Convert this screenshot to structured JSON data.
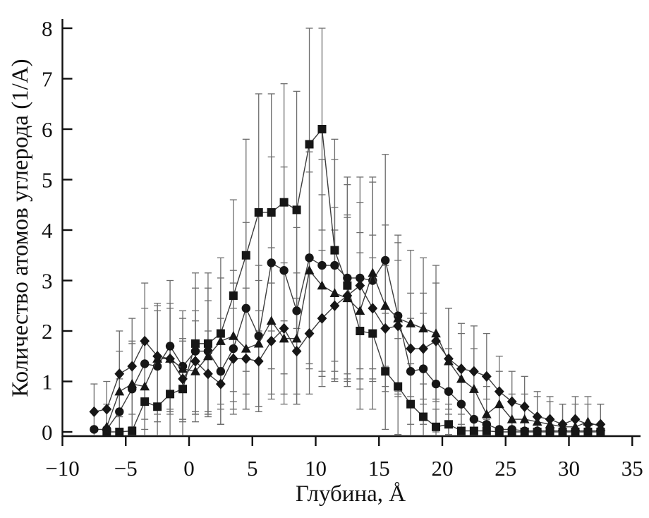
{
  "figure": {
    "title": "",
    "xlabel": "Глубина, Å",
    "ylabel": "Количество атомов углерода (1/А)"
  },
  "chart_data": {
    "type": "line",
    "title": "",
    "xlabel": "Глубина, Å",
    "ylabel": "Количество атомов углерода (1/А)",
    "xlim": [
      -10,
      35
    ],
    "ylim": [
      0,
      8
    ],
    "grid": false,
    "legend": "none",
    "error_bars": true,
    "x_ticks": {
      "values": [
        -10,
        -5,
        0,
        5,
        10,
        15,
        20,
        25,
        30,
        35
      ],
      "labels": [
        "−10",
        "−5",
        "0",
        "5",
        "10",
        "15",
        "20",
        "25",
        "30",
        "35"
      ]
    },
    "y_ticks": {
      "values": [
        0,
        1,
        2,
        3,
        4,
        5,
        6,
        7,
        8
      ],
      "labels": [
        "0",
        "1",
        "2",
        "3",
        "4",
        "5",
        "6",
        "7",
        "8"
      ]
    },
    "x": [
      -7.5,
      -6.5,
      -5.5,
      -4.5,
      -3.5,
      -2.5,
      -1.5,
      -0.5,
      0.5,
      1.5,
      2.5,
      3.5,
      4.5,
      5.5,
      6.5,
      7.5,
      8.5,
      9.5,
      10.5,
      11.5,
      12.5,
      13.5,
      14.5,
      15.5,
      16.5,
      17.5,
      18.5,
      19.5,
      20.5,
      21.5,
      22.5,
      23.5,
      24.5,
      25.5,
      26.5,
      27.5,
      28.5,
      29.5,
      30.5,
      31.5,
      32.5
    ],
    "series": [
      {
        "name": "squares",
        "marker": "square",
        "y": [
          null,
          0,
          0,
          0.02,
          0.6,
          0.5,
          0.75,
          0.85,
          1.75,
          1.75,
          1.95,
          2.7,
          3.5,
          4.35,
          4.35,
          4.55,
          4.4,
          5.7,
          6.0,
          3.6,
          2.9,
          2.0,
          1.95,
          1.2,
          0.9,
          0.55,
          0.3,
          0.1,
          0.15,
          0.02,
          0.02,
          0.02,
          0,
          0,
          0,
          0,
          0,
          0,
          0,
          0,
          0
        ],
        "err": [
          null,
          0,
          0,
          0,
          0.8,
          0.75,
          0.9,
          0.95,
          1.4,
          1.4,
          1.5,
          1.9,
          2.3,
          2.35,
          2.35,
          2.35,
          2.35,
          2.3,
          2.0,
          2.2,
          2.0,
          1.55,
          1.5,
          1.15,
          0.95,
          0.8,
          0.65,
          0.35,
          0.4,
          0,
          0,
          0,
          0,
          0,
          0,
          0,
          0,
          0,
          0,
          0,
          0
        ]
      },
      {
        "name": "circles",
        "marker": "circle",
        "y": [
          0.05,
          0.05,
          0.4,
          0.85,
          1.35,
          1.3,
          1.7,
          1.3,
          1.6,
          1.6,
          1.2,
          1.65,
          2.45,
          1.9,
          3.35,
          3.2,
          2.4,
          3.45,
          3.3,
          3.3,
          3.05,
          3.05,
          3.0,
          3.4,
          2.3,
          1.2,
          1.25,
          0.95,
          0.8,
          0.55,
          0.25,
          0.15,
          0.05,
          0.05,
          0.02,
          0.02,
          0.02,
          0.02,
          0.02,
          0.02,
          0.02
        ],
        "err": [
          0,
          0,
          0.65,
          0.9,
          1.1,
          1.1,
          1.3,
          1.1,
          1.25,
          1.25,
          1.05,
          1.3,
          1.7,
          1.4,
          2.1,
          2.05,
          1.65,
          2.1,
          2.1,
          2.1,
          2.0,
          2.0,
          1.95,
          2.1,
          1.6,
          1.05,
          1.1,
          0.95,
          0.85,
          0.7,
          0.6,
          0.5,
          0,
          0,
          0,
          0,
          0,
          0,
          0,
          0,
          0
        ]
      },
      {
        "name": "triangles",
        "marker": "triangle",
        "y": [
          null,
          0.1,
          0.8,
          0.95,
          0.9,
          1.45,
          1.45,
          1.25,
          1.2,
          1.5,
          1.8,
          1.9,
          1.65,
          1.75,
          2.2,
          1.85,
          1.85,
          3.2,
          2.9,
          2.75,
          2.65,
          2.4,
          3.15,
          2.5,
          2.25,
          2.15,
          2.05,
          1.95,
          1.4,
          1.05,
          0.85,
          0.35,
          0.55,
          0.25,
          0.25,
          0.2,
          0.15,
          0.1,
          0.1,
          0.2,
          0.1
        ],
        "err": [
          null,
          0.45,
          0.8,
          0.85,
          0.85,
          1.1,
          1.1,
          1.0,
          1.0,
          1.1,
          1.25,
          1.3,
          1.2,
          1.25,
          1.45,
          1.3,
          1.3,
          1.95,
          1.8,
          1.7,
          1.65,
          1.55,
          1.9,
          1.6,
          1.5,
          1.45,
          1.4,
          1.35,
          1.05,
          0.9,
          0.8,
          0.55,
          0.65,
          0.5,
          0.5,
          0.5,
          0.45,
          0.45,
          0.45,
          0.5,
          0.45
        ]
      },
      {
        "name": "diamonds",
        "marker": "diamond",
        "y": [
          0.4,
          0.45,
          1.15,
          1.3,
          1.8,
          1.5,
          1.45,
          1.05,
          1.4,
          1.15,
          0.95,
          1.45,
          1.45,
          1.4,
          1.8,
          2.05,
          1.6,
          1.95,
          2.25,
          2.5,
          2.7,
          2.9,
          2.45,
          2.05,
          2.1,
          1.65,
          1.65,
          1.8,
          1.45,
          1.25,
          1.2,
          1.1,
          0.8,
          0.6,
          0.5,
          0.3,
          0.25,
          0.15,
          0.25,
          0.15,
          0.15
        ],
        "err": [
          0.55,
          0.55,
          0.85,
          0.95,
          1.15,
          1.0,
          1.0,
          0.8,
          1.0,
          0.85,
          0.8,
          1.0,
          1.0,
          1.0,
          1.15,
          1.3,
          1.05,
          1.2,
          1.35,
          1.5,
          1.55,
          1.65,
          1.45,
          1.25,
          1.3,
          1.1,
          1.1,
          1.15,
          1.0,
          0.9,
          0.9,
          0.85,
          0.7,
          0.6,
          0.6,
          0.5,
          0.45,
          0.4,
          0.45,
          0.4,
          0.4
        ]
      }
    ],
    "colors": {
      "marker": "#161616",
      "series_line": "#3c3c3c",
      "error_bar": "#6d6d6d",
      "axis": "#111111",
      "background": "#ffffff"
    }
  }
}
